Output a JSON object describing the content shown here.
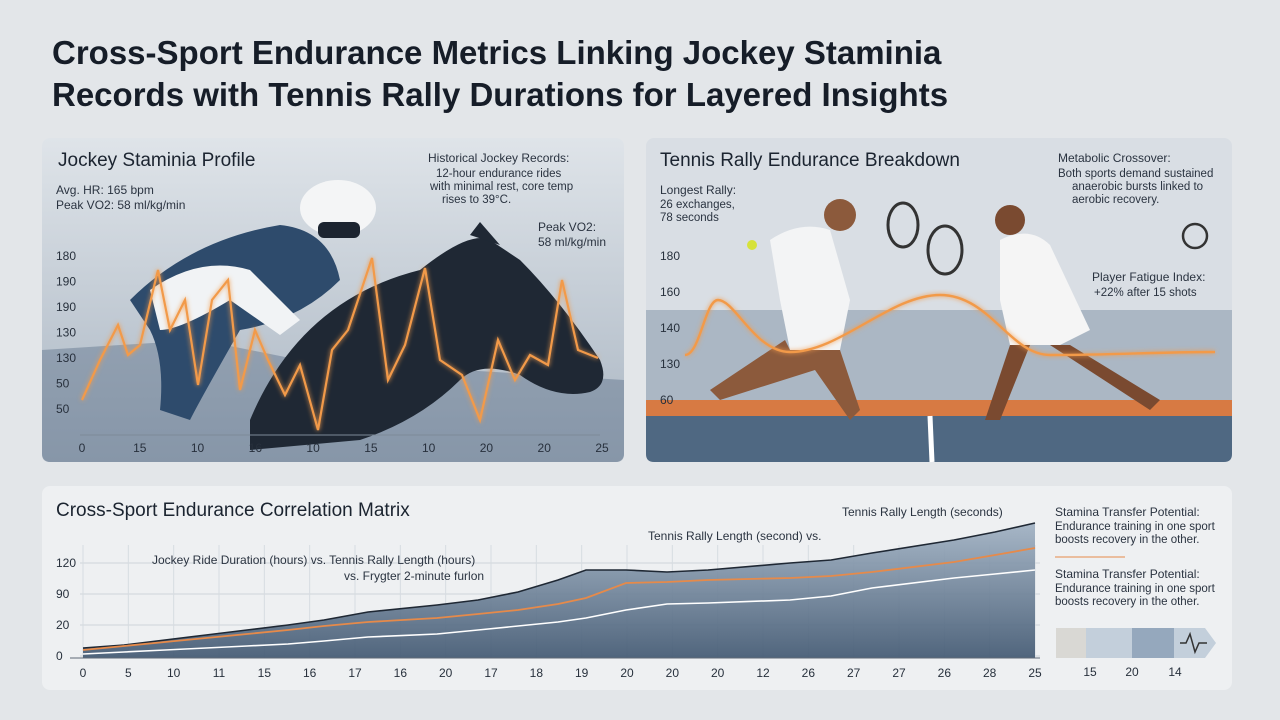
{
  "title": [
    "Cross-Sport Endurance Metrics Linking Jockey Staminia",
    "Records with Tennis Rally Durations for Layered Insights"
  ],
  "jockey": {
    "title": "Jockey Staminia Profile",
    "stats": [
      "Avg. HR: 165 bpm",
      "Peak VO2: 58 ml/kg/min"
    ],
    "note_title": "Historical Jockey Records:",
    "note": [
      "12-hour endurance rides",
      "with minimal rest, core temp",
      "rises to 39°C."
    ],
    "peak_title": "Peak VO2:",
    "peak_value": "58 ml/kg/min",
    "y_labels": [
      "180",
      "190",
      "190",
      "130",
      "130",
      "50",
      "50"
    ],
    "x_labels": [
      "0",
      "15",
      "10",
      "16",
      "10",
      "15",
      "10",
      "20",
      "20",
      "25"
    ]
  },
  "tennis": {
    "title": "Tennis Rally Endurance Breakdown",
    "rally_title": "Longest Rally:",
    "rally": [
      "26 exchanges,",
      "78 seconds"
    ],
    "crossover_title": "Metabolic Crossover:",
    "crossover": [
      "Both sports demand sustained",
      "anaerobic bursts linked to",
      "aerobic recovery."
    ],
    "fatigue_title": "Player Fatigue Index:",
    "fatigue": "+22% after 15 shots",
    "y_labels": [
      "180",
      "160",
      "140",
      "130",
      "60"
    ]
  },
  "matrix": {
    "title": "Cross-Sport Endurance Correlation Matrix",
    "annotations": [
      "Tennis Rally Length (seconds)",
      "Tennis Rally Length (second) vs.",
      "Jockey Ride Duration (hours) vs. Tennis Rally Length (hours)",
      "vs. Frygter 2-minute furlon"
    ],
    "y_labels": [
      "120",
      "90",
      "20",
      "0"
    ],
    "x_labels": [
      "0",
      "5",
      "10",
      "11",
      "15",
      "16",
      "17",
      "16",
      "20",
      "17",
      "18",
      "19",
      "20",
      "20",
      "20",
      "12",
      "26",
      "27",
      "27",
      "26",
      "28",
      "25"
    ],
    "legend": [
      {
        "title": "Stamina Transfer Potential:",
        "lines": [
          "Endurance training in one sport",
          "boosts recovery in the other."
        ]
      },
      {
        "title": "Stamina Transfer Potential:",
        "lines": [
          "Endurance training in one sport",
          "boosts recovery in the other."
        ]
      }
    ],
    "scale_labels": [
      "15",
      "20",
      "14"
    ]
  }
}
